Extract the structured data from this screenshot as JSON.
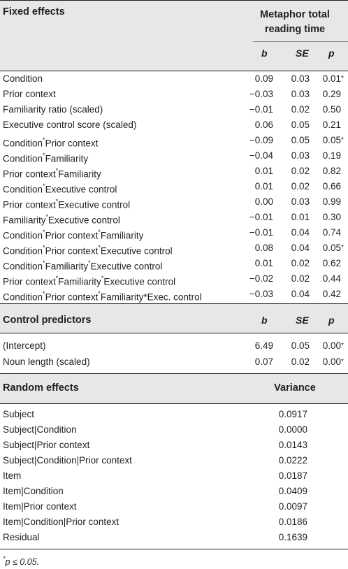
{
  "fixed": {
    "title": "Fixed effects",
    "dv_line1": "Metaphor total",
    "dv_line2": "reading time",
    "col_b": "b",
    "col_se": "SE",
    "col_p": "p",
    "rows": [
      {
        "parts": [
          "Condition"
        ],
        "b": "0.09",
        "se": "0.03",
        "p": "0.01",
        "star": "*"
      },
      {
        "parts": [
          "Prior context"
        ],
        "b": "−0.03",
        "se": "0.03",
        "p": "0.29",
        "star": ""
      },
      {
        "parts": [
          "Familiarity ratio (scaled)"
        ],
        "b": "−0.01",
        "se": "0.02",
        "p": "0.50",
        "star": ""
      },
      {
        "parts": [
          "Executive control score (scaled)"
        ],
        "b": "0.06",
        "se": "0.05",
        "p": "0.21",
        "star": ""
      },
      {
        "parts": [
          "Condition",
          "Prior context"
        ],
        "b": "−0.09",
        "se": "0.05",
        "p": "0.05",
        "star": "*"
      },
      {
        "parts": [
          "Condition",
          "Familiarity"
        ],
        "b": "−0.04",
        "se": "0.03",
        "p": "0.19",
        "star": ""
      },
      {
        "parts": [
          "Prior context",
          "Familiarity"
        ],
        "b": "0.01",
        "se": "0.02",
        "p": "0.82",
        "star": ""
      },
      {
        "parts": [
          "Condition",
          "Executive control"
        ],
        "b": "0.01",
        "se": "0.02",
        "p": "0.66",
        "star": ""
      },
      {
        "parts": [
          "Prior context",
          "Executive control"
        ],
        "b": "0.00",
        "se": "0.03",
        "p": "0.99",
        "star": ""
      },
      {
        "parts": [
          "Familiarity",
          "Executive control"
        ],
        "b": "−0.01",
        "se": "0.01",
        "p": "0.30",
        "star": ""
      },
      {
        "parts": [
          "Condition",
          "Prior context",
          "Familiarity"
        ],
        "b": "−0.01",
        "se": "0.04",
        "p": "0.74",
        "star": ""
      },
      {
        "parts": [
          "Condition",
          "Prior context",
          "Executive control"
        ],
        "b": "0.08",
        "se": "0.04",
        "p": "0.05",
        "star": "*"
      },
      {
        "parts": [
          "Condition",
          "Familiarity",
          "Executive control"
        ],
        "b": "0.01",
        "se": "0.02",
        "p": "0.62",
        "star": ""
      },
      {
        "parts": [
          "Prior context",
          "Familiarity",
          "Executive control"
        ],
        "b": "−0.02",
        "se": "0.02",
        "p": "0.44",
        "star": ""
      },
      {
        "parts": [
          "Condition",
          "Prior context",
          "Familiarity*Exec. control"
        ],
        "b": "−0.03",
        "se": "0.04",
        "p": "0.42",
        "star": ""
      }
    ]
  },
  "control": {
    "title": "Control predictors",
    "col_b": "b",
    "col_se": "SE",
    "col_p": "p",
    "rows": [
      {
        "label": "(Intercept)",
        "b": "6.49",
        "se": "0.05",
        "p": "0.00",
        "star": "*"
      },
      {
        "label": "Noun length (scaled)",
        "b": "0.07",
        "se": "0.02",
        "p": "0.00",
        "star": "*"
      }
    ]
  },
  "random": {
    "title": "Random effects",
    "col_var": "Variance",
    "rows": [
      {
        "label": "Subject",
        "v": "0.0917"
      },
      {
        "label": "Subject|Condition",
        "v": "0.0000"
      },
      {
        "label": "Subject|Prior context",
        "v": "0.0143"
      },
      {
        "label": "Subject|Condition|Prior context",
        "v": "0.0222"
      },
      {
        "label": "Item",
        "v": "0.0187"
      },
      {
        "label": "Item|Condition",
        "v": "0.0409"
      },
      {
        "label": "Item|Prior context",
        "v": "0.0097"
      },
      {
        "label": "Item|Condition|Prior context",
        "v": "0.0186"
      },
      {
        "label": "Residual",
        "v": "0.1639"
      }
    ]
  },
  "footnote": {
    "star": "*",
    "text": "p ≤ 0.05."
  }
}
